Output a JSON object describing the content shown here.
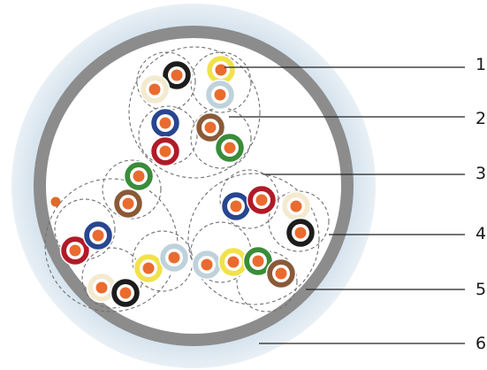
{
  "callouts": [
    {
      "id": "1",
      "label": "1"
    },
    {
      "id": "2",
      "label": "2"
    },
    {
      "id": "3",
      "label": "3"
    },
    {
      "id": "4",
      "label": "4"
    },
    {
      "id": "5",
      "label": "5"
    },
    {
      "id": "6",
      "label": "6"
    }
  ],
  "colors": {
    "outer_jacket": "#d7e4ee",
    "jacket_edge": "#e8eff5",
    "shield": "#8c8c8c",
    "inner_fill": "#ffffff",
    "dash": "#707070",
    "conductor": "#ea6b2e",
    "filler": "#e06a2a",
    "leader": "#222222"
  },
  "wire_insulation_colors": {
    "yellow": "#f1e24a",
    "white": "#f3ead0",
    "grey": "#bfd2dc",
    "black": "#1c1c1c",
    "blue": "#27468f",
    "red": "#b11a28",
    "brown": "#8a5a38",
    "green": "#3a8c3a"
  },
  "bundles": [
    {
      "name": "bundle-top",
      "pairs": [
        {
          "name": "pair-top-1",
          "wires": [
            "yellow",
            "grey"
          ]
        },
        {
          "name": "pair-top-2",
          "wires": [
            "black",
            "white"
          ]
        },
        {
          "name": "pair-top-3",
          "wires": [
            "blue",
            "red"
          ]
        },
        {
          "name": "pair-top-4",
          "wires": [
            "brown",
            "green"
          ]
        }
      ]
    },
    {
      "name": "bundle-left",
      "pairs": [
        {
          "name": "pair-left-1",
          "wires": [
            "green",
            "brown"
          ]
        },
        {
          "name": "pair-left-2",
          "wires": [
            "red",
            "blue"
          ]
        },
        {
          "name": "pair-left-3",
          "wires": [
            "yellow",
            "grey"
          ]
        },
        {
          "name": "pair-left-4",
          "wires": [
            "white",
            "black"
          ]
        }
      ]
    },
    {
      "name": "bundle-right",
      "pairs": [
        {
          "name": "pair-right-1",
          "wires": [
            "blue",
            "red"
          ]
        },
        {
          "name": "pair-right-2",
          "wires": [
            "white",
            "black"
          ]
        },
        {
          "name": "pair-right-3",
          "wires": [
            "grey",
            "yellow"
          ]
        },
        {
          "name": "pair-right-4",
          "wires": [
            "green",
            "brown"
          ]
        }
      ]
    }
  ]
}
